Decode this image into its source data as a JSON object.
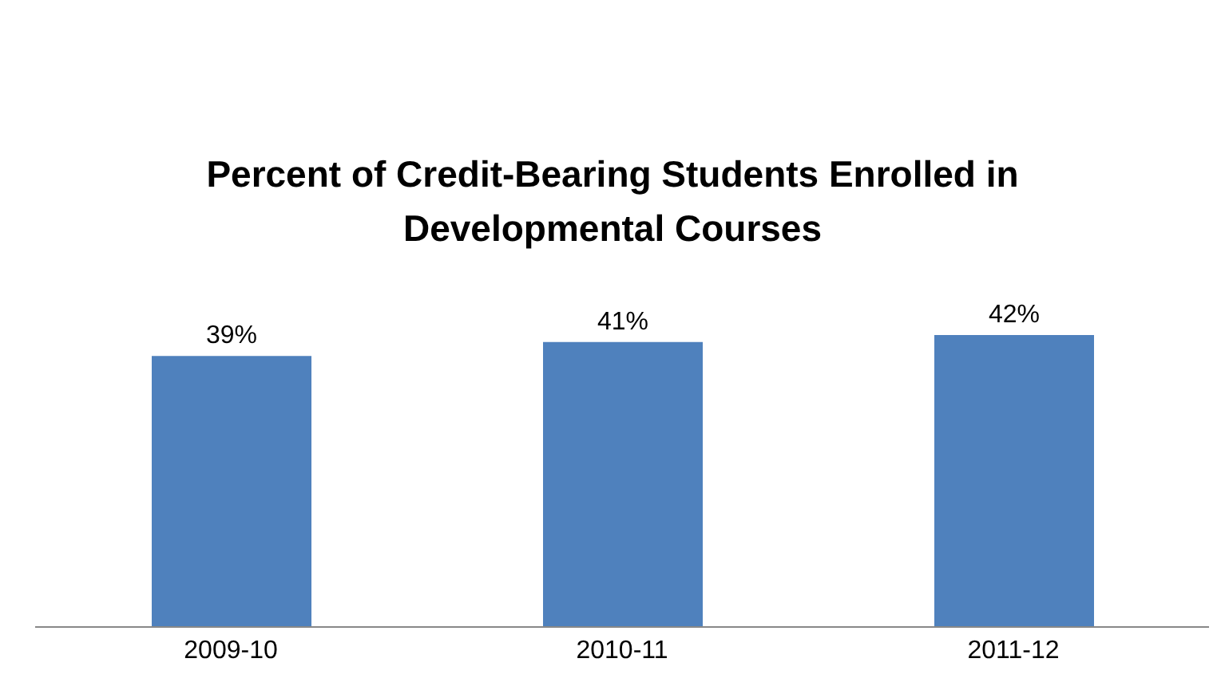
{
  "chart_data": {
    "type": "bar",
    "title": "Percent of Credit-Bearing Students Enrolled in Developmental Courses",
    "categories": [
      "2009-10",
      "2010-11",
      "2011-12"
    ],
    "values": [
      39,
      41,
      42
    ],
    "value_labels": [
      "39%",
      "41%",
      "42%"
    ],
    "color": "#4f81bd",
    "grid": false,
    "legend": false
  }
}
